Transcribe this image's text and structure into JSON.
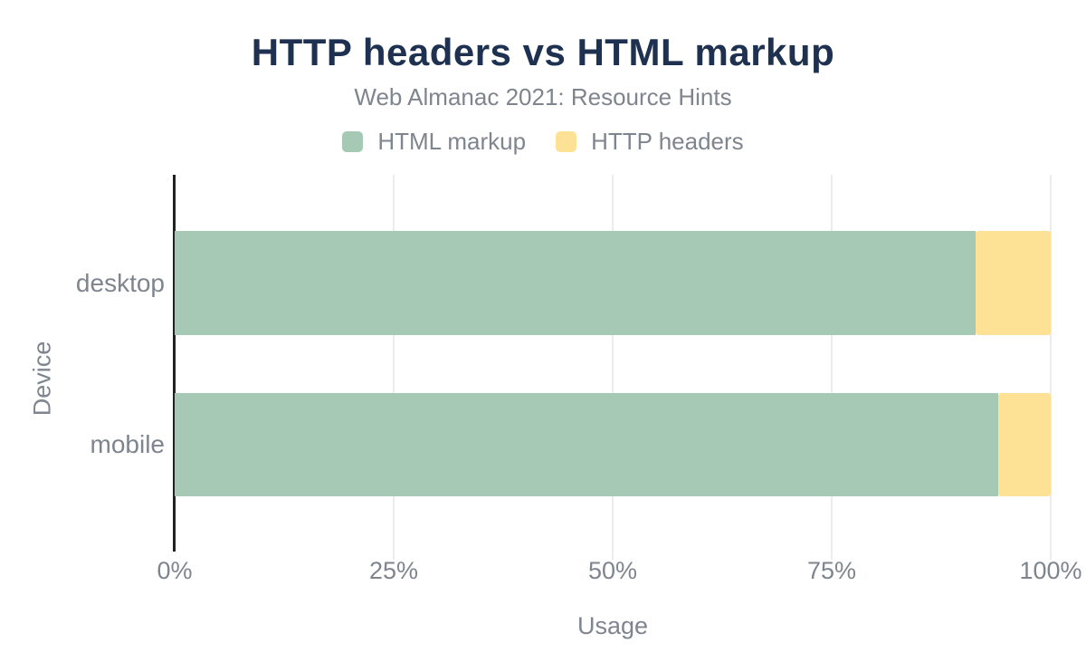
{
  "chart_data": {
    "type": "bar",
    "orientation": "horizontal",
    "stacked": true,
    "stack_unit": "percent",
    "title": "HTTP headers vs HTML markup",
    "subtitle": "Web Almanac 2021: Resource Hints",
    "xlabel": "Usage",
    "ylabel": "Device",
    "categories": [
      "desktop",
      "mobile"
    ],
    "series": [
      {
        "name": "HTML markup",
        "color": "#a6c9b5",
        "values": [
          91.4,
          94.0
        ]
      },
      {
        "name": "HTTP headers",
        "color": "#fde295",
        "values": [
          8.6,
          6.0
        ]
      }
    ],
    "x_ticks": [
      "0%",
      "25%",
      "50%",
      "75%",
      "100%"
    ],
    "x_tick_values": [
      0,
      25,
      50,
      75,
      100
    ],
    "xlim": [
      0,
      100
    ],
    "grid": "vertical-gridlines-at-ticks",
    "legend_position": "top-center"
  },
  "colors": {
    "title": "#1e3150",
    "text_muted": "#7e858f",
    "gridline": "#ececee",
    "axis_line": "#202124",
    "background": "#ffffff",
    "series_html_markup": "#a6c9b5",
    "series_http_headers": "#fde295"
  }
}
